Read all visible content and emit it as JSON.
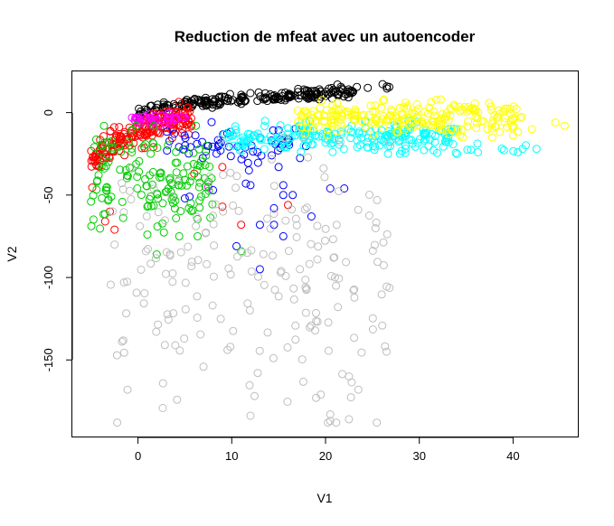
{
  "chart_data": {
    "type": "scatter",
    "title": "Reduction de mfeat avec un autoencoder",
    "xlabel": "V1",
    "ylabel": "V2",
    "xlim": [
      -7,
      47
    ],
    "ylim": [
      -197,
      25
    ],
    "x_ticks": [
      0,
      10,
      20,
      30,
      40
    ],
    "y_ticks": [
      0,
      -50,
      -100,
      -150
    ],
    "grid": false,
    "legend": "none",
    "marker": "open-circle",
    "series": [
      {
        "color": "#000000",
        "clusters": [
          {
            "x": [
              0,
              23
            ],
            "y": [
              -2,
              13
            ],
            "shape": "curve",
            "n": 220
          },
          {
            "x": [
              23,
              27
            ],
            "y": [
              12,
              16
            ],
            "shape": "curve",
            "n": 4
          }
        ],
        "points": [
          [
            24.5,
            15
          ],
          [
            26.8,
            15.5
          ]
        ]
      },
      {
        "color": "#ff0000",
        "clusters": [
          {
            "x": [
              -5,
              6
            ],
            "y": [
              -35,
              -2
            ],
            "shape": "curve-low",
            "n": 200
          }
        ],
        "points": [
          [
            -3.5,
            -66
          ],
          [
            -2.5,
            -71
          ],
          [
            -3,
            -60
          ],
          [
            6,
            -37
          ],
          [
            9,
            -33
          ],
          [
            9,
            -57
          ],
          [
            11,
            -68
          ],
          [
            16,
            -56
          ],
          [
            16,
            -16
          ]
        ]
      },
      {
        "color": "#ff00ff",
        "clusters": [
          {
            "x": [
              -1,
              5
            ],
            "y": [
              -8,
              0
            ],
            "shape": "blob",
            "n": 40
          }
        ],
        "points": [
          [
            7.5,
            -45
          ]
        ]
      },
      {
        "color": "#0000ff",
        "clusters": [
          {
            "x": [
              3,
              18
            ],
            "y": [
              -35,
              -5
            ],
            "shape": "blob",
            "n": 60
          }
        ],
        "points": [
          [
            5,
            -52
          ],
          [
            5.5,
            -51
          ],
          [
            8,
            -47
          ],
          [
            11.5,
            -43
          ],
          [
            12,
            -44
          ],
          [
            15.5,
            -44
          ],
          [
            14.5,
            -58
          ],
          [
            15.5,
            -50
          ],
          [
            16.5,
            -50
          ],
          [
            18.5,
            -63
          ],
          [
            20.5,
            -46
          ],
          [
            22,
            -46
          ],
          [
            13,
            -68
          ],
          [
            14.5,
            -68
          ],
          [
            15.5,
            -75
          ],
          [
            10.5,
            -81
          ],
          [
            13,
            -95
          ],
          [
            15,
            -33
          ]
        ]
      },
      {
        "color": "#00cd00",
        "clusters": [
          {
            "x": [
              -5,
              8
            ],
            "y": [
              -75,
              -8
            ],
            "shape": "blob",
            "n": 150
          }
        ],
        "points": [
          [
            -5,
            -54
          ],
          [
            1,
            -74
          ],
          [
            2,
            -86
          ],
          [
            7.5,
            -42
          ],
          [
            11,
            -84
          ]
        ]
      },
      {
        "color": "#00ffff",
        "clusters": [
          {
            "x": [
              9,
              34
            ],
            "y": [
              -25,
              -5
            ],
            "shape": "blob",
            "n": 220
          },
          {
            "x": [
              34,
              42
            ],
            "y": [
              -28,
              -18
            ],
            "shape": "blob",
            "n": 10
          }
        ],
        "points": [
          [
            40.5,
            -24
          ],
          [
            42.5,
            -22
          ]
        ]
      },
      {
        "color": "#ffff00",
        "clusters": [
          {
            "x": [
              17,
              41
            ],
            "y": [
              -15,
              8
            ],
            "shape": "blob",
            "n": 230
          }
        ],
        "points": [
          [
            44.5,
            -6
          ],
          [
            45.5,
            -8
          ],
          [
            42,
            -10
          ]
        ]
      },
      {
        "color": "#bebebe",
        "clusters": [
          {
            "x": [
              -3,
              27
            ],
            "y": [
              -188,
              -15
            ],
            "shape": "blob",
            "n": 200
          }
        ],
        "points": [
          [
            20.5,
            -183
          ],
          [
            20.5,
            -187
          ],
          [
            22.5,
            -186
          ],
          [
            22.5,
            -160
          ],
          [
            23.5,
            -168
          ],
          [
            26.5,
            -145
          ],
          [
            19.5,
            -171
          ],
          [
            19,
            -173
          ],
          [
            -2.5,
            -80
          ]
        ]
      }
    ]
  }
}
